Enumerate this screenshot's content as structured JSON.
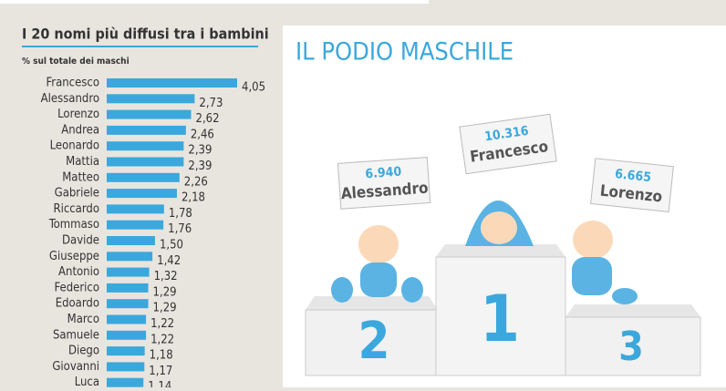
{
  "chart_data": {
    "type": "bar",
    "title": "I 20 nomi più diffusi tra i bambini",
    "subtitle": "% sul totale dei maschi",
    "color": "#3aa8dc",
    "categories": [
      "Francesco",
      "Alessandro",
      "Lorenzo",
      "Andrea",
      "Leonardo",
      "Mattia",
      "Matteo",
      "Gabriele",
      "Riccardo",
      "Tommaso",
      "Davide",
      "Giuseppe",
      "Antonio",
      "Federico",
      "Edoardo",
      "Marco",
      "Samuele",
      "Diego",
      "Giovanni",
      "Luca"
    ],
    "values": [
      4.05,
      2.73,
      2.62,
      2.46,
      2.39,
      2.39,
      2.26,
      2.18,
      1.78,
      1.76,
      1.5,
      1.42,
      1.32,
      1.29,
      1.29,
      1.22,
      1.22,
      1.18,
      1.17,
      1.14
    ],
    "value_labels": [
      "4,05",
      "2,73",
      "2,62",
      "2,46",
      "2,39",
      "2,39",
      "2,26",
      "2,18",
      "1,78",
      "1,76",
      "1,50",
      "1,42",
      "1,32",
      "1,29",
      "1,29",
      "1,22",
      "1,22",
      "1,18",
      "1,17",
      "1,14"
    ]
  },
  "podium": {
    "title": "IL PODIO MASCHILE",
    "places": [
      {
        "rank": "1",
        "count": "10.316",
        "name": "Francesco"
      },
      {
        "rank": "2",
        "count": "6.940",
        "name": "Alessandro"
      },
      {
        "rank": "3",
        "count": "6.665",
        "name": "Lorenzo"
      }
    ]
  }
}
